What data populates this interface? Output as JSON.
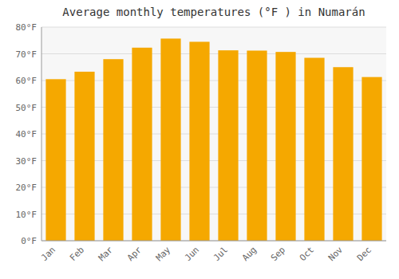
{
  "chart_data": {
    "type": "bar",
    "title": "Average monthly temperatures (°F ) in Numarán",
    "categories": [
      "Jan",
      "Feb",
      "Mar",
      "Apr",
      "May",
      "Jun",
      "Jul",
      "Aug",
      "Sep",
      "Oct",
      "Nov",
      "Dec"
    ],
    "values": [
      60.5,
      63.3,
      68.0,
      72.3,
      75.7,
      74.5,
      71.3,
      71.2,
      70.7,
      68.5,
      65.0,
      61.3
    ],
    "color": "#F5A800",
    "ylim": [
      0,
      80
    ],
    "yticks": [
      {
        "value": 0,
        "label": "0°F"
      },
      {
        "value": 10,
        "label": "10°F"
      },
      {
        "value": 20,
        "label": "20°F"
      },
      {
        "value": 30,
        "label": "30°F"
      },
      {
        "value": 40,
        "label": "40°F"
      },
      {
        "value": 50,
        "label": "50°F"
      },
      {
        "value": 60,
        "label": "60°F"
      },
      {
        "value": 70,
        "label": "70°F"
      },
      {
        "value": 80,
        "label": "80°F"
      }
    ],
    "grid": true
  }
}
